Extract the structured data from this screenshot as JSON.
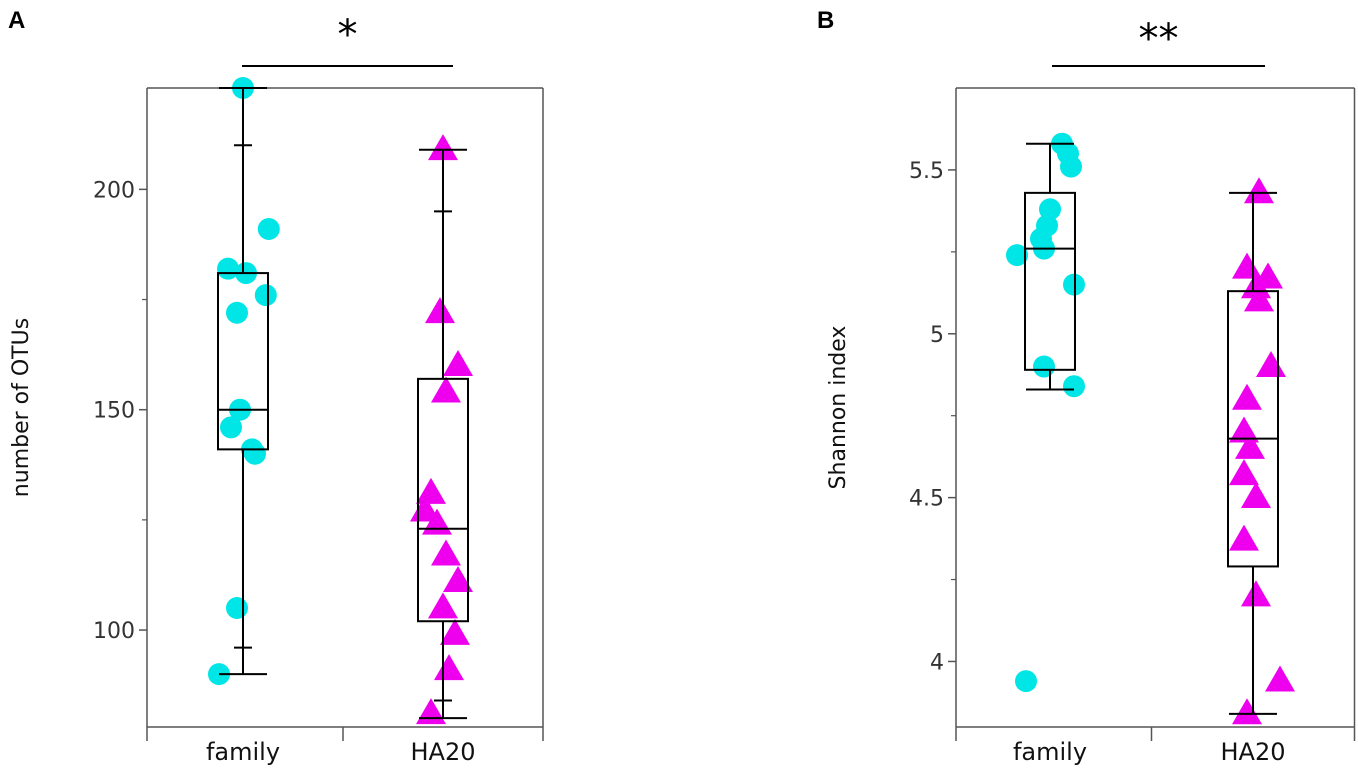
{
  "chart_data": [
    {
      "type": "box",
      "panel_label": "A",
      "ylabel": "number of OTUs",
      "ylim": [
        78,
        223
      ],
      "yticks": [
        100,
        150,
        200
      ],
      "categories": [
        "family",
        "HA20"
      ],
      "significance": "*",
      "colors": {
        "family": "#00e6e6",
        "HA20": "#ee00ee"
      },
      "boxes": [
        {
          "name": "family",
          "low": 90,
          "q1": 141,
          "median": 150,
          "q3": 181,
          "high": 223,
          "whisker_cap_inner_low": 96,
          "whisker_cap_inner_high": 210
        },
        {
          "name": "HA20",
          "low": 80,
          "q1": 102,
          "median": 123,
          "q3": 157,
          "high": 209,
          "whisker_cap_inner_low": 84,
          "whisker_cap_inner_high": 195
        }
      ],
      "points": [
        {
          "series": "family",
          "values": [
            223,
            191,
            182,
            181,
            176,
            172,
            150,
            146,
            141,
            140,
            105,
            90
          ],
          "offsets": [
            0.0,
            0.43,
            -0.25,
            0.05,
            0.38,
            -0.1,
            -0.05,
            -0.2,
            0.15,
            0.2,
            -0.1,
            -0.4
          ]
        },
        {
          "series": "HA20",
          "values": [
            209,
            172,
            160,
            154,
            131,
            127,
            124,
            117,
            111,
            105,
            99,
            91,
            81
          ],
          "offsets": [
            0.0,
            -0.05,
            0.25,
            0.05,
            -0.2,
            -0.3,
            -0.1,
            0.05,
            0.25,
            0.0,
            0.2,
            0.1,
            -0.2
          ]
        }
      ]
    },
    {
      "type": "box",
      "panel_label": "B",
      "ylabel": "Shannon index",
      "ylim": [
        3.8,
        5.75
      ],
      "yticks": [
        4,
        4.5,
        5,
        5.5
      ],
      "ytick_labels": [
        "4",
        "4.5",
        "5",
        "5.5"
      ],
      "categories": [
        "family",
        "HA20"
      ],
      "significance": "**",
      "colors": {
        "family": "#00e6e6",
        "HA20": "#ee00ee"
      },
      "boxes": [
        {
          "name": "family",
          "low": 4.83,
          "q1": 4.89,
          "median": 5.26,
          "q3": 5.43,
          "high": 5.58
        },
        {
          "name": "HA20",
          "low": 3.84,
          "q1": 4.29,
          "median": 4.68,
          "q3": 5.13,
          "high": 5.43
        }
      ],
      "points": [
        {
          "series": "family",
          "values": [
            5.58,
            5.55,
            5.51,
            5.38,
            5.33,
            5.29,
            5.26,
            5.24,
            5.15,
            4.9,
            4.84,
            3.94
          ],
          "offsets": [
            0.2,
            0.3,
            0.35,
            0.0,
            -0.05,
            -0.15,
            -0.1,
            -0.55,
            0.4,
            -0.1,
            0.4,
            -0.4
          ]
        },
        {
          "series": "HA20",
          "values": [
            5.43,
            5.2,
            5.17,
            5.14,
            5.1,
            4.9,
            4.8,
            4.7,
            4.65,
            4.57,
            4.5,
            4.37,
            4.2,
            3.94,
            3.84
          ],
          "offsets": [
            0.1,
            -0.1,
            0.25,
            0.05,
            0.1,
            0.3,
            -0.1,
            -0.15,
            -0.05,
            -0.15,
            0.05,
            -0.15,
            0.05,
            0.45,
            -0.1
          ]
        }
      ]
    }
  ]
}
